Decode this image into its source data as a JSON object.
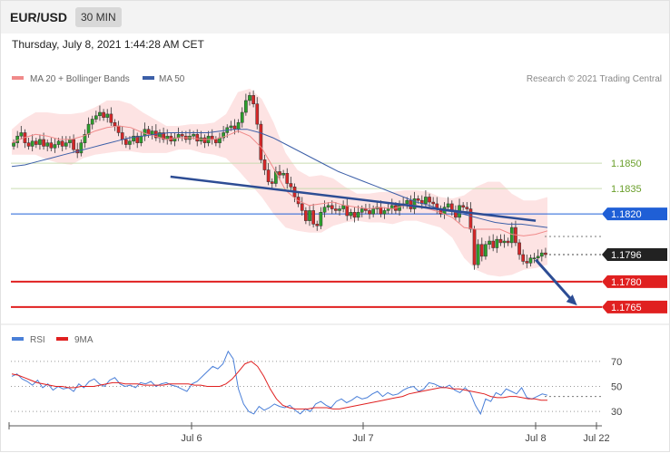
{
  "header": {
    "pair": "EUR/USD",
    "timeframe": "30 MIN",
    "datetime": "Thursday, July 8, 2021 1:44:28 AM CET"
  },
  "legend": {
    "ma20": "MA 20 + Bollinger Bands",
    "ma50": "MA 50",
    "credit": "Research © 2021 Trading Central",
    "rsi": "RSI",
    "ma9": "9MA"
  },
  "colors": {
    "candle_up": "#2ca02c",
    "candle_down": "#d62728",
    "bollinger_fill": "#fde3e3",
    "ma20": "#f08a8a",
    "ma50": "#3c5fa8",
    "trendline": "#2d4d94",
    "level_resistance": "#1f5fd6",
    "level_support": "#e02020",
    "level_target_green": "#6a9f2a",
    "rsi": "#4a7fd8",
    "rsi_ma": "#e02020"
  },
  "chart_data": [
    {
      "type": "candlestick",
      "title": "EUR/USD",
      "ylim": [
        1.1758,
        1.1895
      ],
      "x_tick_labels": [
        "Jul 6",
        "Jul 7",
        "Jul 8",
        "Jul 22"
      ],
      "levels": [
        {
          "label": "1.1850",
          "value": 1.185,
          "role": "target"
        },
        {
          "label": "1.1835",
          "value": 1.1835,
          "role": "target"
        },
        {
          "label": "1.1820",
          "value": 1.182,
          "role": "pivot"
        },
        {
          "label": "1.1796",
          "value": 1.1796,
          "role": "last"
        },
        {
          "label": "1.1780",
          "value": 1.178,
          "role": "support"
        },
        {
          "label": "1.1765",
          "value": 1.1765,
          "role": "support"
        }
      ],
      "close_series": [
        1.1862,
        1.1866,
        1.1868,
        1.1862,
        1.186,
        1.1863,
        1.1861,
        1.1864,
        1.186,
        1.1862,
        1.1859,
        1.1861,
        1.1863,
        1.186,
        1.1862,
        1.1864,
        1.1858,
        1.1856,
        1.1862,
        1.1867,
        1.1873,
        1.1876,
        1.1878,
        1.188,
        1.1877,
        1.1879,
        1.1874,
        1.1872,
        1.1868,
        1.1864,
        1.1861,
        1.1863,
        1.1866,
        1.1862,
        1.1866,
        1.187,
        1.1867,
        1.1869,
        1.1865,
        1.1868,
        1.1864,
        1.1866,
        1.1863,
        1.1865,
        1.1867,
        1.1866,
        1.1864,
        1.1866,
        1.1867,
        1.1863,
        1.1865,
        1.1862,
        1.1866,
        1.1864,
        1.1862,
        1.1865,
        1.1868,
        1.1871,
        1.1872,
        1.187,
        1.1874,
        1.188,
        1.1887,
        1.189,
        1.1885,
        1.1873,
        1.1852,
        1.1846,
        1.1839,
        1.1838,
        1.1845,
        1.1843,
        1.1844,
        1.1838,
        1.1836,
        1.183,
        1.1826,
        1.1822,
        1.1816,
        1.1822,
        1.1814,
        1.1813,
        1.1821,
        1.1824,
        1.1825,
        1.1823,
        1.1822,
        1.1823,
        1.1825,
        1.1819,
        1.1821,
        1.1818,
        1.1821,
        1.1823,
        1.1822,
        1.182,
        1.1823,
        1.1824,
        1.182,
        1.1822,
        1.1823,
        1.1825,
        1.1822,
        1.1825,
        1.1826,
        1.1828,
        1.1823,
        1.1829,
        1.1828,
        1.1826,
        1.183,
        1.1827,
        1.1826,
        1.1823,
        1.182,
        1.1824,
        1.1826,
        1.1822,
        1.1818,
        1.1825,
        1.1824,
        1.1823,
        1.1811,
        1.179,
        1.1802,
        1.1795,
        1.1802,
        1.1804,
        1.18,
        1.1805,
        1.1803,
        1.1804,
        1.1803,
        1.1812,
        1.1803,
        1.1796,
        1.1792,
        1.1791,
        1.1794,
        1.1794,
        1.1795,
        1.1797,
        1.1796
      ],
      "bollinger_upper": [
        1.187,
        1.1876,
        1.188,
        1.188,
        1.1879,
        1.1879,
        1.188,
        1.1883,
        1.1887,
        1.1887,
        1.1885,
        1.188,
        1.1876,
        1.1872,
        1.1872,
        1.1873,
        1.1873,
        1.1874,
        1.1879,
        1.1892,
        1.1894,
        1.1888,
        1.1874,
        1.1856,
        1.1846,
        1.1842,
        1.1843,
        1.1841,
        1.1836,
        1.1832,
        1.1832,
        1.1833,
        1.1833,
        1.1834,
        1.1834,
        1.1833,
        1.183,
        1.1829,
        1.1831,
        1.1836,
        1.1839,
        1.1839,
        1.1832,
        1.1828,
        1.1828,
        1.183
      ],
      "bollinger_lower": [
        1.1855,
        1.1855,
        1.1855,
        1.1852,
        1.185,
        1.1849,
        1.1853,
        1.1855,
        1.1856,
        1.1857,
        1.1857,
        1.1856,
        1.1856,
        1.1856,
        1.1858,
        1.1858,
        1.1856,
        1.1855,
        1.1853,
        1.1846,
        1.1838,
        1.183,
        1.182,
        1.1812,
        1.181,
        1.1809,
        1.1809,
        1.1813,
        1.1815,
        1.1816,
        1.1815,
        1.1815,
        1.1814,
        1.1816,
        1.1816,
        1.1814,
        1.1812,
        1.1806,
        1.1794,
        1.1787,
        1.1784,
        1.1783,
        1.1784,
        1.1787,
        1.1788,
        1.179
      ],
      "ma20": [
        1.1862,
        1.1865,
        1.1867,
        1.1866,
        1.1864,
        1.1864,
        1.1866,
        1.1869,
        1.1871,
        1.1872,
        1.1871,
        1.1868,
        1.1866,
        1.1864,
        1.1865,
        1.1865,
        1.1864,
        1.1864,
        1.1866,
        1.1869,
        1.1866,
        1.1859,
        1.1847,
        1.1834,
        1.1828,
        1.1825,
        1.1826,
        1.1827,
        1.1825,
        1.1824,
        1.1823,
        1.1824,
        1.1823,
        1.1825,
        1.1825,
        1.1823,
        1.1821,
        1.1818,
        1.1812,
        1.1811,
        1.1811,
        1.1811,
        1.1808,
        1.1807,
        1.1808,
        1.181
      ],
      "ma50": [
        1.1848,
        1.1849,
        1.1851,
        1.1853,
        1.1855,
        1.1857,
        1.1859,
        1.1861,
        1.1863,
        1.1865,
        1.1866,
        1.1867,
        1.1868,
        1.1868,
        1.1868,
        1.1868,
        1.1869,
        1.187,
        1.187,
        1.1868,
        1.1865,
        1.1861,
        1.1857,
        1.1853,
        1.1849,
        1.1845,
        1.1842,
        1.1839,
        1.1836,
        1.1833,
        1.183,
        1.1827,
        1.1825,
        1.1822,
        1.1821,
        1.1819,
        1.1817,
        1.1815,
        1.1814,
        1.1814,
        1.1813,
        1.1812
      ],
      "trendline": [
        [
          0.27,
          1.1842
        ],
        [
          0.888,
          1.1816
        ]
      ],
      "forecast_arrow": [
        [
          0.888,
          1.1793
        ],
        [
          0.955,
          1.1767
        ]
      ]
    },
    {
      "type": "line",
      "title": "RSI",
      "ylim": [
        20,
        80
      ],
      "y_ticks": [
        70,
        50,
        30
      ],
      "series": [
        {
          "name": "RSI",
          "values": [
            58,
            60,
            56,
            54,
            51,
            55,
            49,
            52,
            47,
            50,
            48,
            49,
            46,
            52,
            49,
            54,
            56,
            52,
            50,
            55,
            57,
            52,
            50,
            51,
            49,
            53,
            52,
            54,
            50,
            52,
            53,
            51,
            50,
            48,
            46,
            52,
            54,
            58,
            62,
            66,
            64,
            68,
            78,
            72,
            48,
            36,
            30,
            28,
            34,
            31,
            33,
            36,
            34,
            33,
            35,
            31,
            28,
            32,
            30,
            36,
            38,
            35,
            33,
            38,
            40,
            37,
            39,
            42,
            40,
            41,
            44,
            46,
            42,
            45,
            43,
            44,
            47,
            49,
            50,
            46,
            48,
            53,
            52,
            50,
            49,
            51,
            47,
            45,
            49,
            45,
            35,
            28,
            40,
            38,
            45,
            43,
            48,
            46,
            44,
            49,
            41,
            40,
            42,
            44,
            43
          ]
        },
        {
          "name": "9MA",
          "values": [
            60,
            59,
            57,
            55,
            53,
            52,
            51,
            50,
            50,
            49,
            49,
            50,
            50,
            50,
            51,
            52,
            53,
            53,
            52,
            52,
            52,
            51,
            51,
            51,
            51,
            52,
            52,
            52,
            52,
            51,
            51,
            50,
            50,
            50,
            52,
            56,
            62,
            68,
            70,
            66,
            58,
            48,
            40,
            35,
            33,
            32,
            32,
            32,
            33,
            33,
            33,
            32,
            32,
            33,
            34,
            35,
            36,
            37,
            38,
            39,
            40,
            41,
            42,
            44,
            45,
            46,
            47,
            48,
            49,
            49,
            48,
            48,
            47,
            46,
            45,
            44,
            42,
            41,
            41,
            42,
            42,
            41,
            40,
            40,
            39,
            39
          ]
        }
      ]
    }
  ]
}
